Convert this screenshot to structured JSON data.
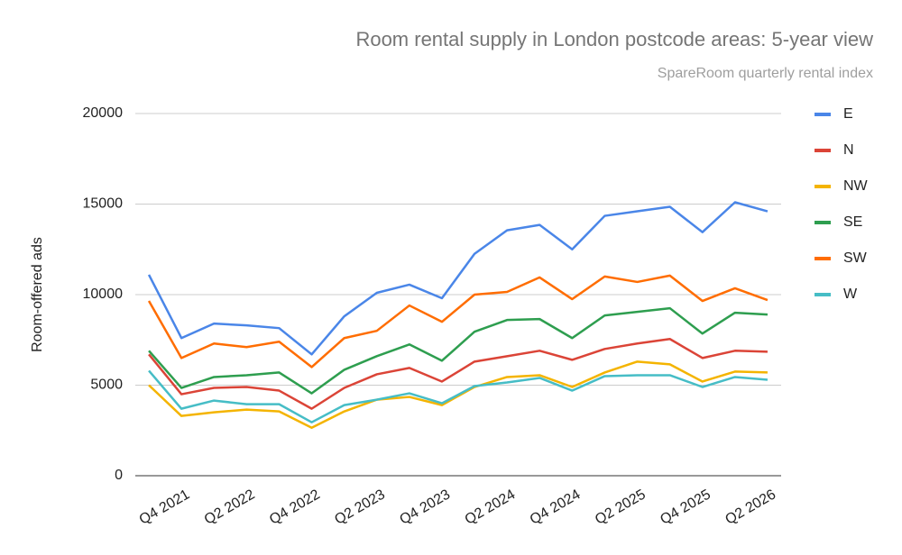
{
  "chart_data": {
    "type": "line",
    "title": "Room rental supply in London postcode areas: 5-year view",
    "subtitle": "SpareRoom quarterly rental index",
    "y_label": "Room-offered ads",
    "categories": [
      null,
      "Q4 2021",
      null,
      "Q2 2022",
      null,
      "Q4 2022",
      null,
      "Q2 2023",
      null,
      "Q4 2023",
      null,
      "Q2 2024",
      null,
      "Q4 2024",
      null,
      "Q2 2025",
      null,
      "Q4 2025",
      null,
      "Q2 2026"
    ],
    "series": [
      {
        "name": "E",
        "color": "#4a86e8",
        "values": [
          11100,
          7600,
          8400,
          8300,
          8150,
          6700,
          8800,
          10100,
          10550,
          9800,
          12250,
          13550,
          13850,
          12500,
          14350,
          14600,
          14850,
          13450,
          15100,
          14600
        ]
      },
      {
        "name": "N",
        "color": "#db4437",
        "values": [
          6700,
          4500,
          4850,
          4900,
          4700,
          3700,
          4850,
          5600,
          5950,
          5200,
          6300,
          6600,
          6900,
          6400,
          7000,
          7300,
          7550,
          6500,
          6900,
          6850
        ]
      },
      {
        "name": "NW",
        "color": "#f4b400",
        "values": [
          5000,
          3300,
          3500,
          3650,
          3550,
          2650,
          3550,
          4200,
          4350,
          3900,
          4900,
          5450,
          5550,
          4900,
          5700,
          6300,
          6150,
          5200,
          5750,
          5700
        ]
      },
      {
        "name": "SE",
        "color": "#2e9e4f",
        "values": [
          6900,
          4850,
          5450,
          5550,
          5700,
          4550,
          5850,
          6600,
          7250,
          6350,
          7950,
          8600,
          8650,
          7600,
          8850,
          9050,
          9250,
          7850,
          9000,
          8900
        ]
      },
      {
        "name": "SW",
        "color": "#ff6d01",
        "values": [
          9650,
          6500,
          7300,
          7100,
          7400,
          6000,
          7600,
          8000,
          9400,
          8500,
          10000,
          10150,
          10950,
          9750,
          11000,
          10700,
          11050,
          9650,
          10350,
          9700
        ]
      },
      {
        "name": "W",
        "color": "#46bdc6",
        "values": [
          5800,
          3700,
          4150,
          3950,
          3950,
          2950,
          3900,
          4200,
          4550,
          4000,
          4950,
          5150,
          5400,
          4700,
          5500,
          5550,
          5550,
          4900,
          5450,
          5300
        ]
      }
    ],
    "ylim": [
      0,
      20000
    ],
    "yticks": [
      0,
      5000,
      10000,
      15000,
      20000
    ],
    "grid": true,
    "legend": "right"
  }
}
